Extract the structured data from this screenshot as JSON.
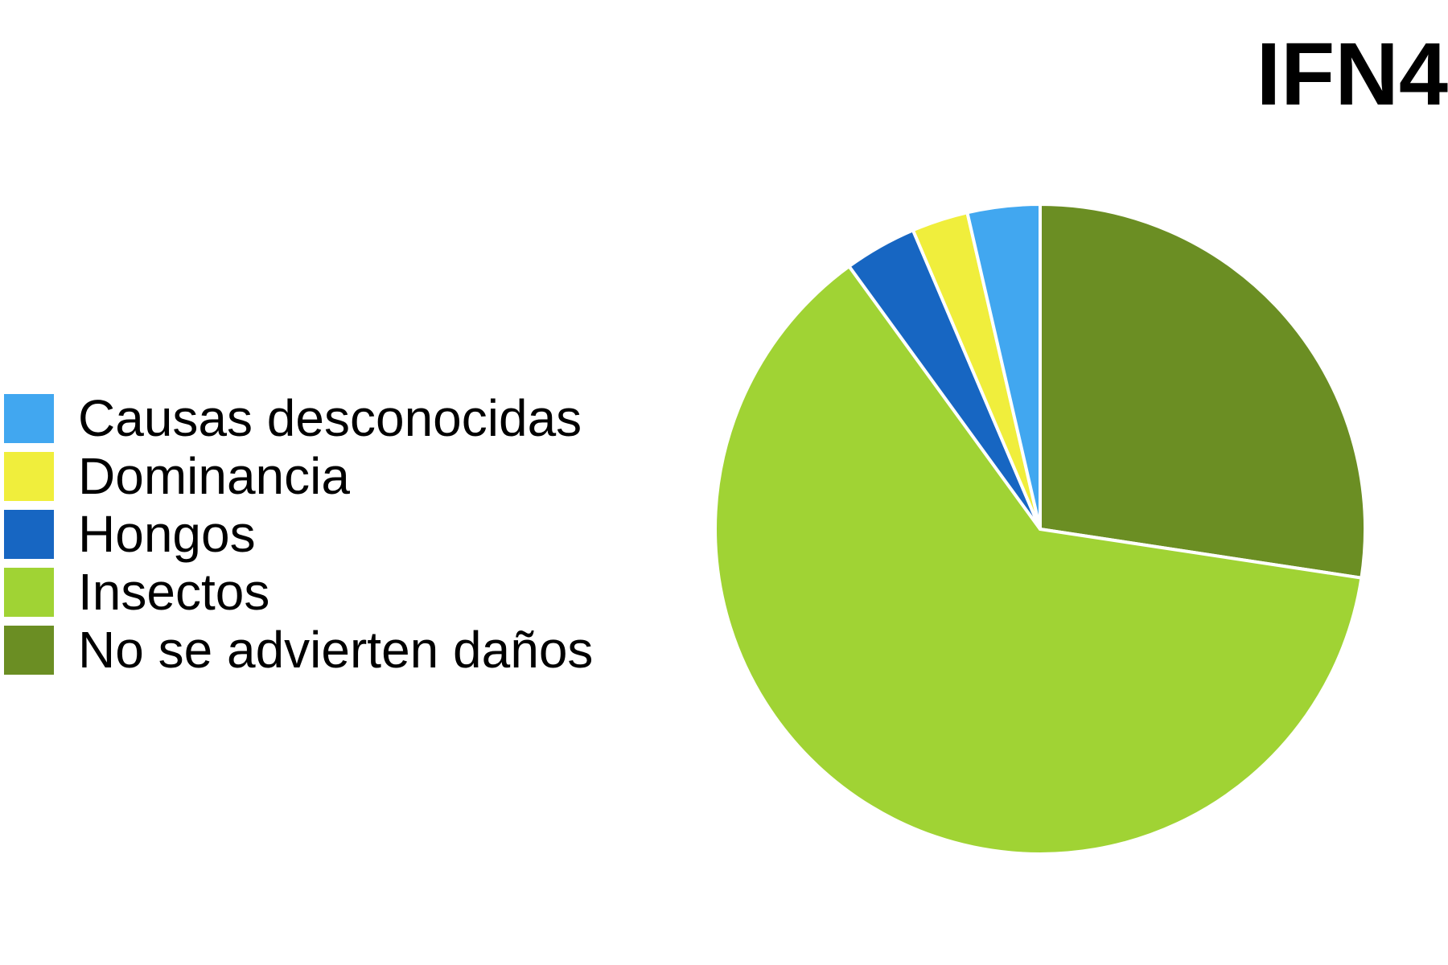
{
  "chart_data": {
    "type": "pie",
    "title": "IFN4",
    "legend_position": "left",
    "categories": [
      "Causas desconocidas",
      "Dominancia",
      "Hongos",
      "Insectos",
      "No se advierten daños"
    ],
    "values": [
      3.6,
      2.8,
      3.6,
      62.6,
      27.4
    ],
    "unit": "%",
    "colors": [
      "#41a7f0",
      "#f0ee3c",
      "#1766c2",
      "#a0d334",
      "#6b8e23"
    ]
  }
}
